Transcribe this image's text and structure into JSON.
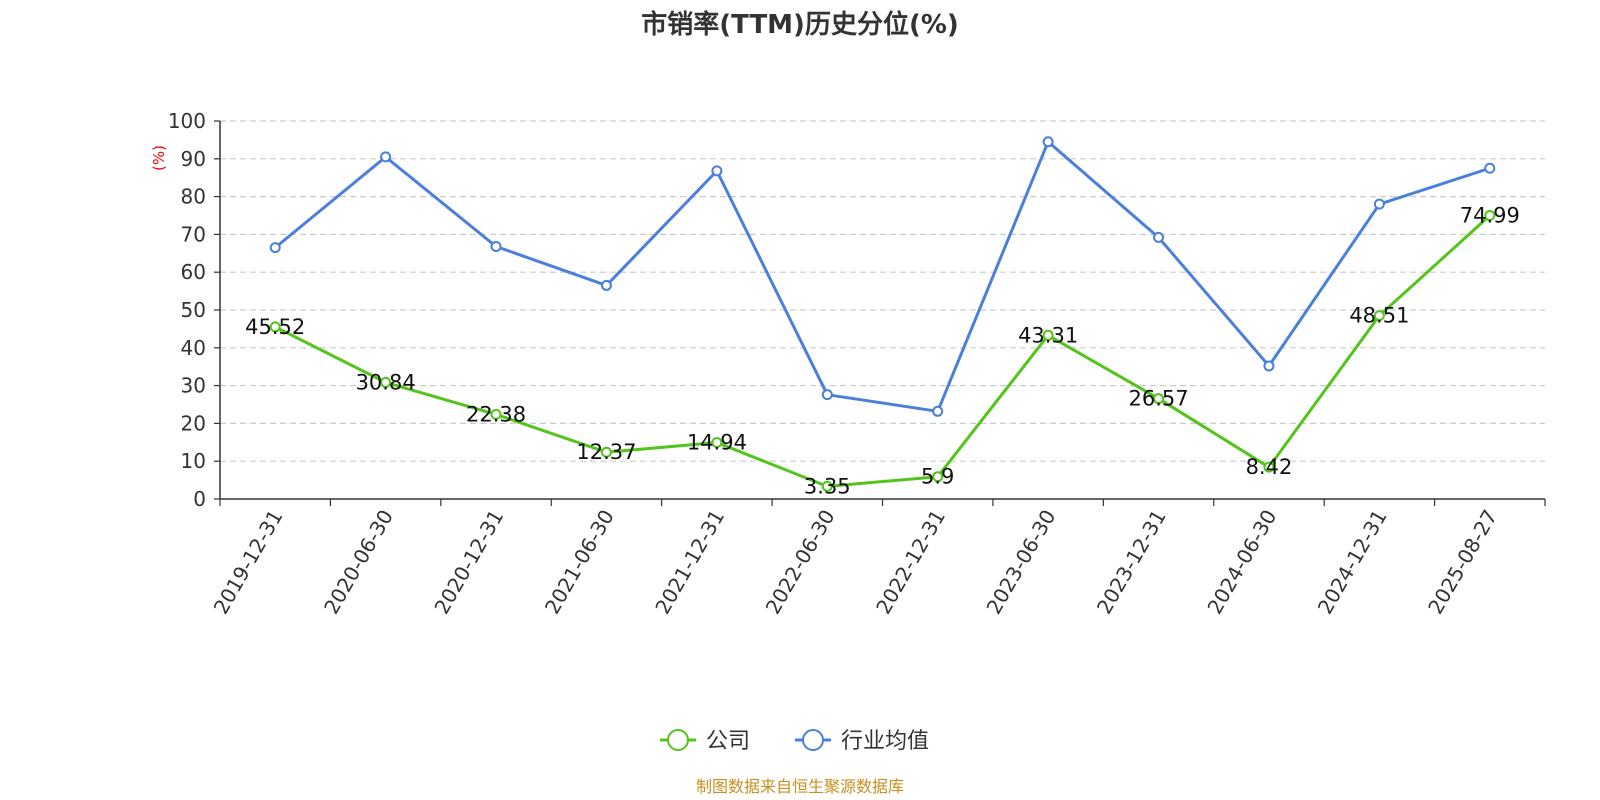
{
  "chart_data": {
    "type": "line",
    "title": "市销率(TTM)历史分位(%)",
    "ylabel": "(%)",
    "xlabel": "",
    "ylim": [
      0,
      100
    ],
    "yticks": [
      0,
      10,
      20,
      30,
      40,
      50,
      60,
      70,
      80,
      90,
      100
    ],
    "grid": true,
    "legend_position": "bottom-center",
    "categories": [
      "2019-12-31",
      "2020-06-30",
      "2020-12-31",
      "2021-06-30",
      "2021-12-31",
      "2022-06-30",
      "2022-12-31",
      "2023-06-30",
      "2023-12-31",
      "2024-06-30",
      "2024-12-31",
      "2025-08-27"
    ],
    "series": [
      {
        "name": "公司",
        "color": "#52c41a",
        "show_labels": true,
        "values": [
          45.52,
          30.84,
          22.38,
          12.37,
          14.94,
          3.35,
          5.9,
          43.31,
          26.57,
          8.42,
          48.51,
          74.99
        ]
      },
      {
        "name": "行业均值",
        "color": "#4a7fdc",
        "show_labels": false,
        "values": [
          66.5,
          90.5,
          66.8,
          56.5,
          86.8,
          27.6,
          23.2,
          94.5,
          69.2,
          35.2,
          78.0,
          87.5
        ]
      }
    ],
    "source": "制图数据来自恒生聚源数据库"
  }
}
